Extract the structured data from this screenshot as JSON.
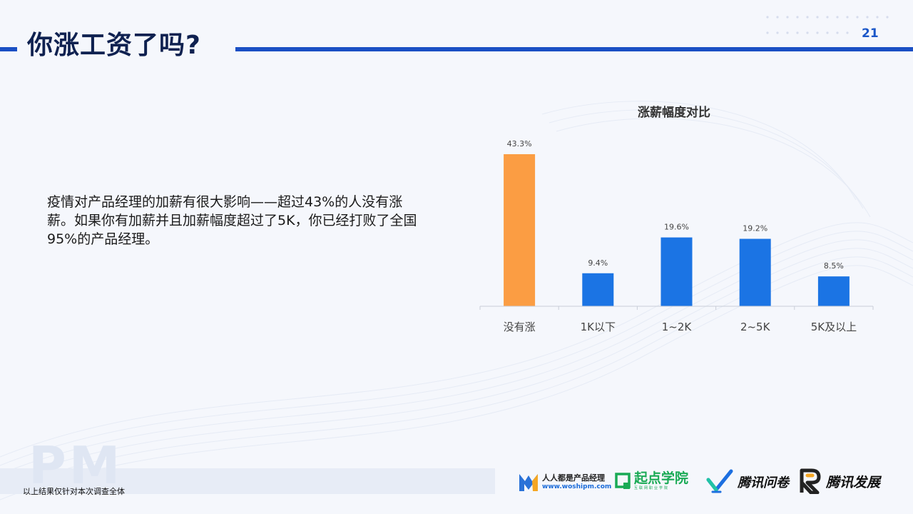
{
  "header": {
    "title": "你涨工资了吗?",
    "page_number": "21"
  },
  "body_text": "疫情对产品经理的加薪有很大影响——超过43%的人没有涨薪。如果你有加薪并且加薪幅度超过了5K，你已经打败了全国95%的产品经理。",
  "chart_data": {
    "type": "bar",
    "title": "涨薪幅度对比",
    "xlabel": "",
    "ylabel": "",
    "categories": [
      "没有涨",
      "1K以下",
      "1~2K",
      "2~5K",
      "5K及以上"
    ],
    "values": [
      43.3,
      9.4,
      19.6,
      19.2,
      8.5
    ],
    "value_labels": [
      "43.3%",
      "9.4%",
      "19.6%",
      "19.2%",
      "8.5%"
    ],
    "ylim": [
      0,
      43.3
    ],
    "grid": false,
    "highlight_color": "#fb9d43",
    "bar_color": "#1b74e4"
  },
  "footer": {
    "note": "以上结果仅针对本次调查全体",
    "watermark": "PM",
    "logos": {
      "woshipm_name": "人人都是产品经理",
      "woshipm_url": "www.woshipm.com",
      "qidian_name": "起点学院",
      "qidian_sub": "互联网职业学院",
      "wenjuan_name": "腾讯问卷",
      "fazhan_name": "腾讯发展"
    }
  }
}
